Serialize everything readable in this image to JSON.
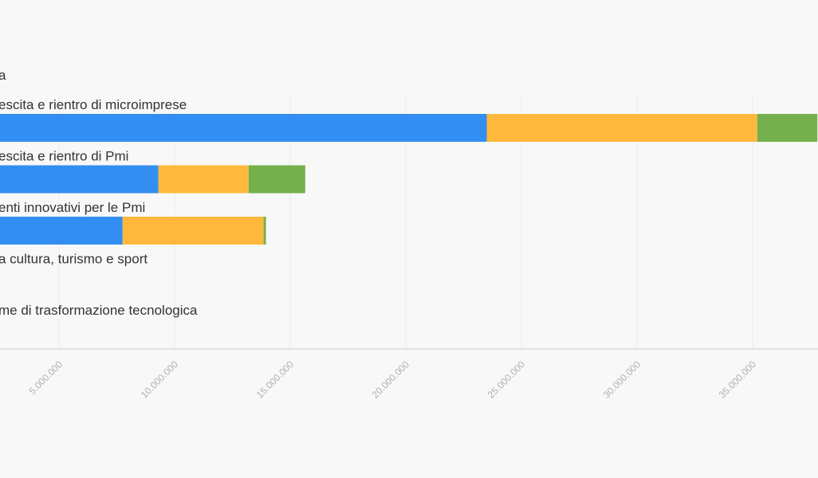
{
  "chart_data": {
    "type": "bar",
    "orientation": "horizontal",
    "stacked": true,
    "header_label": "a",
    "categories": [
      "escita e rientro di microimprese",
      "escita e rientro di Pmi",
      "enti innovativi per le Pmi",
      " a cultura, turismo e sport",
      "me di trasformazione tecnologica"
    ],
    "series": [
      {
        "color": "#338ef1",
        "values": [
          23500000,
          9300000,
          7750000,
          0,
          0
        ]
      },
      {
        "color": "#ffb83c",
        "values": [
          11700000,
          3900000,
          6100000,
          0,
          0
        ]
      },
      {
        "color": "#75b04c",
        "values": [
          2600000,
          2450000,
          100000,
          0,
          0
        ]
      }
    ],
    "x_ticks": [
      "5.000.000",
      "10.000.000",
      "15.000.000",
      "20.000.000",
      "25.000.000",
      "30.000.000",
      "35.000.000"
    ],
    "x_tick_values": [
      5000000,
      10000000,
      15000000,
      20000000,
      25000000,
      30000000,
      35000000
    ],
    "grid": true,
    "legend": "none"
  }
}
